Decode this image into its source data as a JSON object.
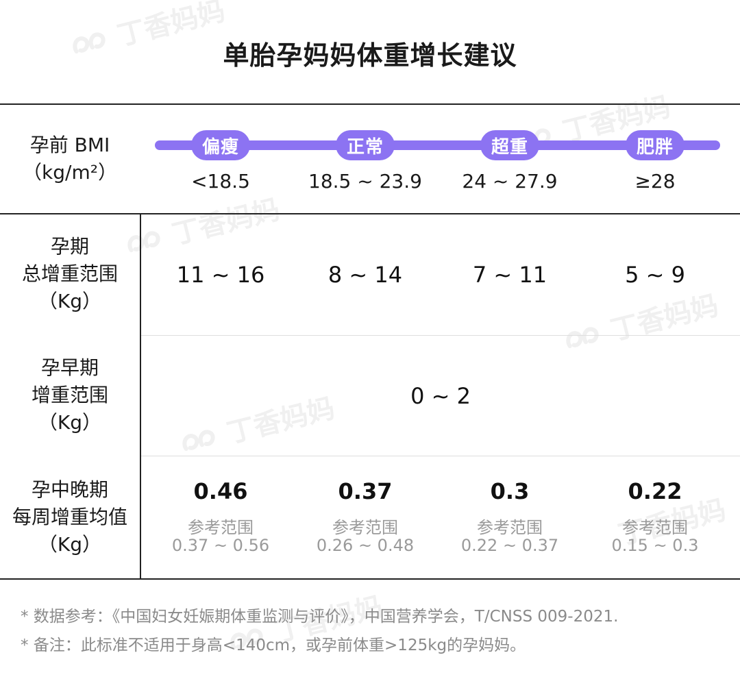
{
  "watermark": "丁香妈妈",
  "title": "单胎孕妈妈体重增长建议",
  "bmi_row": {
    "label_line1": "孕前 BMI",
    "label_line2": "（kg/m²）",
    "categories": [
      {
        "name": "偏瘦",
        "range": "<18.5"
      },
      {
        "name": "正常",
        "range": "18.5 ~ 23.9"
      },
      {
        "name": "超重",
        "range": "24 ~ 27.9"
      },
      {
        "name": "肥胖",
        "range": "≥28"
      }
    ]
  },
  "total_row": {
    "label_lines": [
      "孕期",
      "总增重范围",
      "（Kg）"
    ],
    "values": [
      "11 ~ 16",
      "8 ~ 14",
      "7 ~ 11",
      "5 ~ 9"
    ]
  },
  "early_row": {
    "label_lines": [
      "孕早期",
      "增重范围",
      "（Kg）"
    ],
    "value": "0 ~ 2"
  },
  "late_row": {
    "label_lines": [
      "孕中晚期",
      "每周增重均值",
      "（Kg）"
    ],
    "ref_label": "参考范围",
    "values": [
      {
        "mean": "0.46",
        "ref": "0.37 ~ 0.56"
      },
      {
        "mean": "0.37",
        "ref": "0.26 ~ 0.48"
      },
      {
        "mean": "0.3",
        "ref": "0.22 ~ 0.37"
      },
      {
        "mean": "0.22",
        "ref": "0.15 ~ 0.3"
      }
    ]
  },
  "notes": [
    "* 数据参考：《中国妇女妊娠期体重监测与评价》，中国营养学会，T/CNSS 009-2021.",
    "* 备注：此标准不适用于身高<140cm，或孕前体重>125kg的孕妈妈。"
  ],
  "colors": {
    "accent": "#8c73f2",
    "line": "#222222",
    "muted": "#9a9a9a"
  }
}
